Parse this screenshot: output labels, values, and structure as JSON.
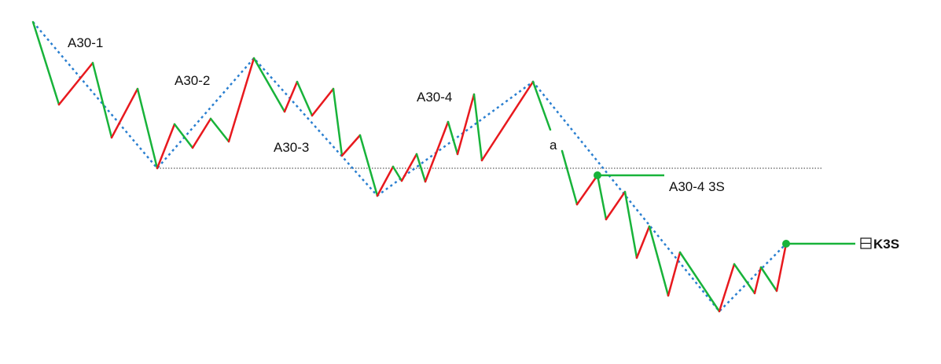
{
  "colors": {
    "up": "#e8191e",
    "down": "#18b33a",
    "trend": "#2a7fd0",
    "reference": "#333333",
    "signal": "#18b33a"
  },
  "labels": {
    "a30_1": "A30-1",
    "a30_2": "A30-2",
    "a30_3": "A30-3",
    "a30_4": "A30-4",
    "a": "a",
    "a30_4_3s": "A30-4 3S",
    "k3s": "K3S"
  },
  "icons": {
    "k3s_marker": "minus-square-icon"
  }
}
